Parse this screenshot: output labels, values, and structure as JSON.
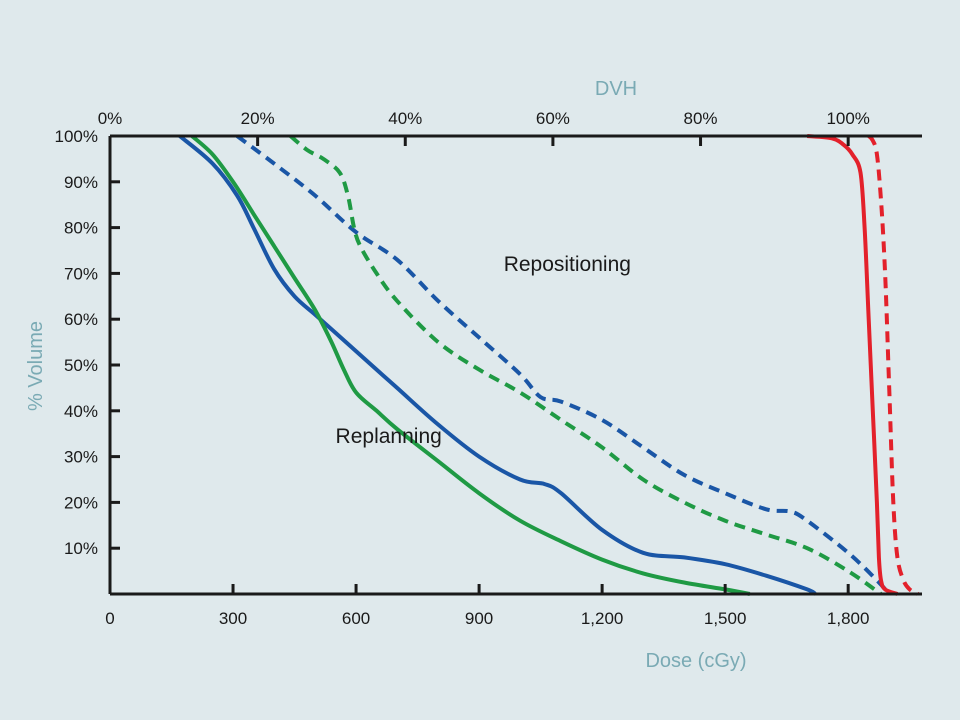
{
  "chart_data": {
    "type": "line",
    "title": "DVH",
    "xlabel": "Dose (cGy)",
    "ylabel": "% Volume",
    "xlim": [
      0,
      1980
    ],
    "ylim": [
      0,
      100
    ],
    "x_ticks": [
      {
        "value": 0,
        "label": "0"
      },
      {
        "value": 300,
        "label": "300"
      },
      {
        "value": 600,
        "label": "600"
      },
      {
        "value": 900,
        "label": "900"
      },
      {
        "value": 1200,
        "label": "1,200"
      },
      {
        "value": 1500,
        "label": "1,500"
      },
      {
        "value": 1800,
        "label": "1,800"
      }
    ],
    "top_ticks": [
      {
        "value": 0,
        "label": "0%"
      },
      {
        "value": 20,
        "label": "20%"
      },
      {
        "value": 40,
        "label": "40%"
      },
      {
        "value": 60,
        "label": "60%"
      },
      {
        "value": 80,
        "label": "80%"
      },
      {
        "value": 100,
        "label": "100%"
      }
    ],
    "top_axis_range": [
      0,
      110
    ],
    "y_ticks": [
      {
        "value": 10,
        "label": "10%"
      },
      {
        "value": 20,
        "label": "20%"
      },
      {
        "value": 30,
        "label": "30%"
      },
      {
        "value": 40,
        "label": "40%"
      },
      {
        "value": 50,
        "label": "50%"
      },
      {
        "value": 60,
        "label": "60%"
      },
      {
        "value": 70,
        "label": "70%"
      },
      {
        "value": 80,
        "label": "80%"
      },
      {
        "value": 90,
        "label": "90%"
      },
      {
        "value": 100,
        "label": "100%"
      }
    ],
    "series": [
      {
        "name": "blue-solid",
        "color": "#1a56a6",
        "dash": "solid",
        "x": [
          170,
          250,
          310,
          350,
          400,
          450,
          500,
          550,
          600,
          700,
          800,
          900,
          1000,
          1060,
          1100,
          1200,
          1300,
          1400,
          1500,
          1600,
          1700,
          1720
        ],
        "y": [
          100,
          94,
          87,
          80,
          71,
          65,
          61,
          57,
          53,
          45,
          37,
          30,
          25,
          24,
          22,
          14,
          9,
          8,
          6.5,
          4,
          1,
          0
        ]
      },
      {
        "name": "green-solid",
        "color": "#1f9a44",
        "dash": "solid",
        "x": [
          200,
          250,
          300,
          350,
          400,
          450,
          500,
          540,
          570,
          600,
          650,
          700,
          800,
          900,
          1000,
          1100,
          1200,
          1300,
          1400,
          1500,
          1560
        ],
        "y": [
          100,
          96,
          90,
          83,
          76,
          69,
          62,
          55,
          49,
          44,
          40,
          36,
          29,
          22,
          16,
          11.5,
          7.5,
          4.5,
          2.5,
          1,
          0
        ]
      },
      {
        "name": "blue-dashed",
        "color": "#1a56a6",
        "dash": "dashed",
        "x": [
          310,
          400,
          500,
          600,
          700,
          800,
          900,
          1000,
          1050,
          1100,
          1200,
          1300,
          1400,
          1500,
          1600,
          1660,
          1700,
          1800,
          1870,
          1900
        ],
        "y": [
          100,
          94,
          87,
          79,
          73,
          64,
          56,
          48,
          43,
          42,
          38,
          32,
          26,
          22,
          18.5,
          18,
          16,
          9,
          3,
          0
        ]
      },
      {
        "name": "green-dashed",
        "color": "#1f9a44",
        "dash": "dashed",
        "x": [
          440,
          480,
          520,
          560,
          580,
          595,
          610,
          650,
          700,
          800,
          900,
          1000,
          1100,
          1200,
          1300,
          1400,
          1500,
          1600,
          1700,
          1800,
          1880
        ],
        "y": [
          100,
          97,
          95,
          92,
          87,
          80,
          76,
          70,
          64,
          55,
          49,
          44,
          38,
          32,
          25,
          20,
          16,
          13,
          10,
          5,
          0
        ]
      },
      {
        "name": "red-solid",
        "color": "#e3212b",
        "dash": "solid",
        "x": [
          1700,
          1760,
          1790,
          1810,
          1830,
          1840,
          1850,
          1860,
          1870,
          1875,
          1880,
          1890,
          1920
        ],
        "y": [
          100,
          99.5,
          98,
          96,
          92,
          80,
          60,
          40,
          20,
          8,
          3,
          1,
          0
        ]
      },
      {
        "name": "red-dashed",
        "color": "#e3212b",
        "dash": "dashed",
        "x": [
          1850,
          1860,
          1870,
          1880,
          1890,
          1900,
          1910,
          1920,
          1935,
          1950,
          1970
        ],
        "y": [
          100,
          99,
          96,
          86,
          70,
          45,
          20,
          8,
          3,
          1,
          0
        ]
      }
    ],
    "annotations": [
      {
        "text": "Repositioning",
        "x": 960,
        "y": 70.5
      },
      {
        "text": "Replanning",
        "x": 550,
        "y": 33
      }
    ]
  }
}
